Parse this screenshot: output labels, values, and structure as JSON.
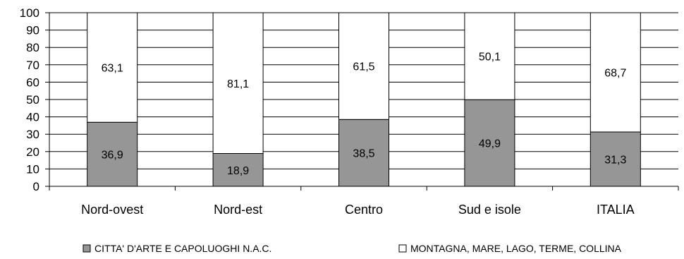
{
  "chart_data": {
    "type": "bar",
    "stacked": true,
    "percent_stacked": true,
    "categories": [
      "Nord-ovest",
      "Nord-est",
      "Centro",
      "Sud e isole",
      "ITALIA"
    ],
    "series": [
      {
        "name": "CITTA' D'ARTE E CAPOLUOGHI N.A.C.",
        "values": [
          36.9,
          18.9,
          38.5,
          49.9,
          31.3
        ],
        "labels": [
          "36,9",
          "18,9",
          "38,5",
          "49,9",
          "31,3"
        ],
        "color": "#969696"
      },
      {
        "name": "MONTAGNA, MARE, LAGO, TERME, COLLINA",
        "values": [
          63.1,
          81.1,
          61.5,
          50.1,
          68.7
        ],
        "labels": [
          "63,1",
          "81,1",
          "61,5",
          "50,1",
          "68,7"
        ],
        "color": "#ffffff"
      }
    ],
    "ylim": [
      0,
      100
    ],
    "yticks": [
      0,
      10,
      20,
      30,
      40,
      50,
      60,
      70,
      80,
      90,
      100
    ],
    "grid": true,
    "legend_position": "bottom",
    "title": "",
    "xlabel": "",
    "ylabel": ""
  }
}
